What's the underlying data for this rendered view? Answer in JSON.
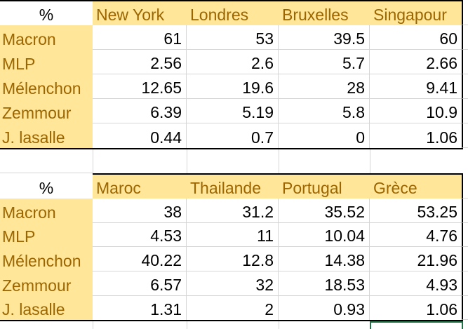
{
  "app": {
    "name": "spreadsheet-grid-view"
  },
  "colors": {
    "header_fill": "#FFE699",
    "header_text": "#9C6500",
    "value_text": "#000000",
    "gridline": "#D6D6D6",
    "table_border": "#000000",
    "selection_border": "#217346"
  },
  "tables": [
    {
      "corner_label": "%",
      "columns": [
        "New York",
        "Londres",
        "Bruxelles",
        "Singapour"
      ],
      "rows": [
        {
          "label": "Macron",
          "values": [
            "61",
            "53",
            "39.5",
            "60"
          ]
        },
        {
          "label": "MLP",
          "values": [
            "2.56",
            "2.6",
            "5.7",
            "2.66"
          ]
        },
        {
          "label": "Mélenchon",
          "values": [
            "12.65",
            "19.6",
            "28",
            "9.41"
          ]
        },
        {
          "label": "Zemmour",
          "values": [
            "6.39",
            "5.19",
            "5.8",
            "10.9"
          ]
        },
        {
          "label": "J. lasalle",
          "values": [
            "0.44",
            "0.7",
            "0",
            "1.06"
          ]
        }
      ]
    },
    {
      "corner_label": "%",
      "columns": [
        "Maroc",
        "Thailande",
        "Portugal",
        "Grèce"
      ],
      "rows": [
        {
          "label": "Macron",
          "values": [
            "38",
            "31.2",
            "35.52",
            "53.25"
          ]
        },
        {
          "label": "MLP",
          "values": [
            "4.53",
            "11",
            "10.04",
            "4.76"
          ]
        },
        {
          "label": "Mélenchon",
          "values": [
            "40.22",
            "12.8",
            "14.38",
            "21.96"
          ]
        },
        {
          "label": "Zemmour",
          "values": [
            "6.57",
            "32",
            "18.53",
            "4.93"
          ]
        },
        {
          "label": "J. lasalle",
          "values": [
            "1.31",
            "2",
            "0.93",
            "1.06"
          ]
        }
      ]
    }
  ]
}
